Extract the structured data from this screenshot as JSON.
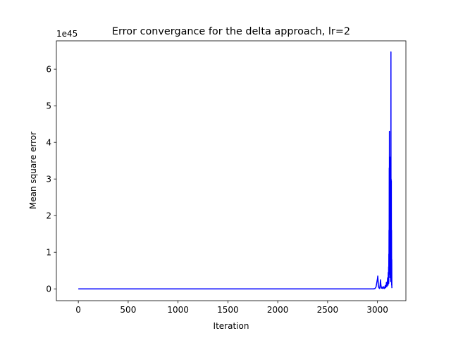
{
  "chart_data": {
    "type": "line",
    "title": "Error convergance for the delta approach, lr=2",
    "xlabel": "Iteration",
    "ylabel": "Mean square error",
    "y_offset_label": "1e45",
    "xlim": [
      -220,
      3285
    ],
    "ylim": [
      -0.3225,
      6.7725
    ],
    "y_scale_exponent": 45,
    "xticks": [
      0,
      500,
      1000,
      1500,
      2000,
      2500,
      3000
    ],
    "yticks": [
      0,
      1,
      2,
      3,
      4,
      5,
      6
    ],
    "grid": false,
    "legend": "none",
    "series": [
      {
        "color": "#0000ff",
        "x": [
          0,
          2960,
          2975,
          2985,
          2990,
          2995,
          3000,
          3003,
          3006,
          3010,
          3014,
          3018,
          3022,
          3026,
          3030,
          3034,
          3038,
          3042,
          3046,
          3050,
          3054,
          3058,
          3062,
          3066,
          3070,
          3074,
          3078,
          3082,
          3086,
          3090,
          3094,
          3098,
          3102,
          3106,
          3108,
          3110,
          3112,
          3113,
          3114,
          3115,
          3116,
          3117,
          3118,
          3119,
          3120,
          3121,
          3122,
          3123,
          3124,
          3125,
          3126,
          3127,
          3128,
          3129,
          3130,
          3131,
          3132,
          3133,
          3134,
          3135,
          3136,
          3137,
          3138,
          3139,
          3140,
          3141,
          3142,
          3143,
          3144,
          3145
        ],
        "y": [
          0,
          0,
          0.01,
          0.05,
          0.12,
          0.2,
          0.28,
          0.35,
          0.22,
          0.08,
          0.03,
          0.02,
          0.01,
          0.1,
          0.25,
          0.12,
          0.03,
          0.02,
          0.05,
          0.02,
          0.01,
          0.03,
          0.06,
          0.02,
          0.01,
          0.04,
          0.09,
          0.03,
          0.08,
          0.18,
          0.06,
          0.15,
          0.3,
          0.1,
          0.45,
          0.2,
          0.6,
          0.15,
          0.95,
          0.3,
          1.6,
          0.5,
          3.3,
          0.8,
          4.3,
          1.2,
          2.4,
          0.4,
          3.6,
          0.9,
          1.8,
          0.3,
          2.6,
          0.6,
          0.5,
          1.3,
          0.2,
          2.1,
          0.4,
          6.47,
          1.0,
          3.0,
          0.5,
          2.95,
          0.2,
          1.6,
          0.1,
          0.8,
          0.05,
          0.02
        ]
      }
    ]
  }
}
